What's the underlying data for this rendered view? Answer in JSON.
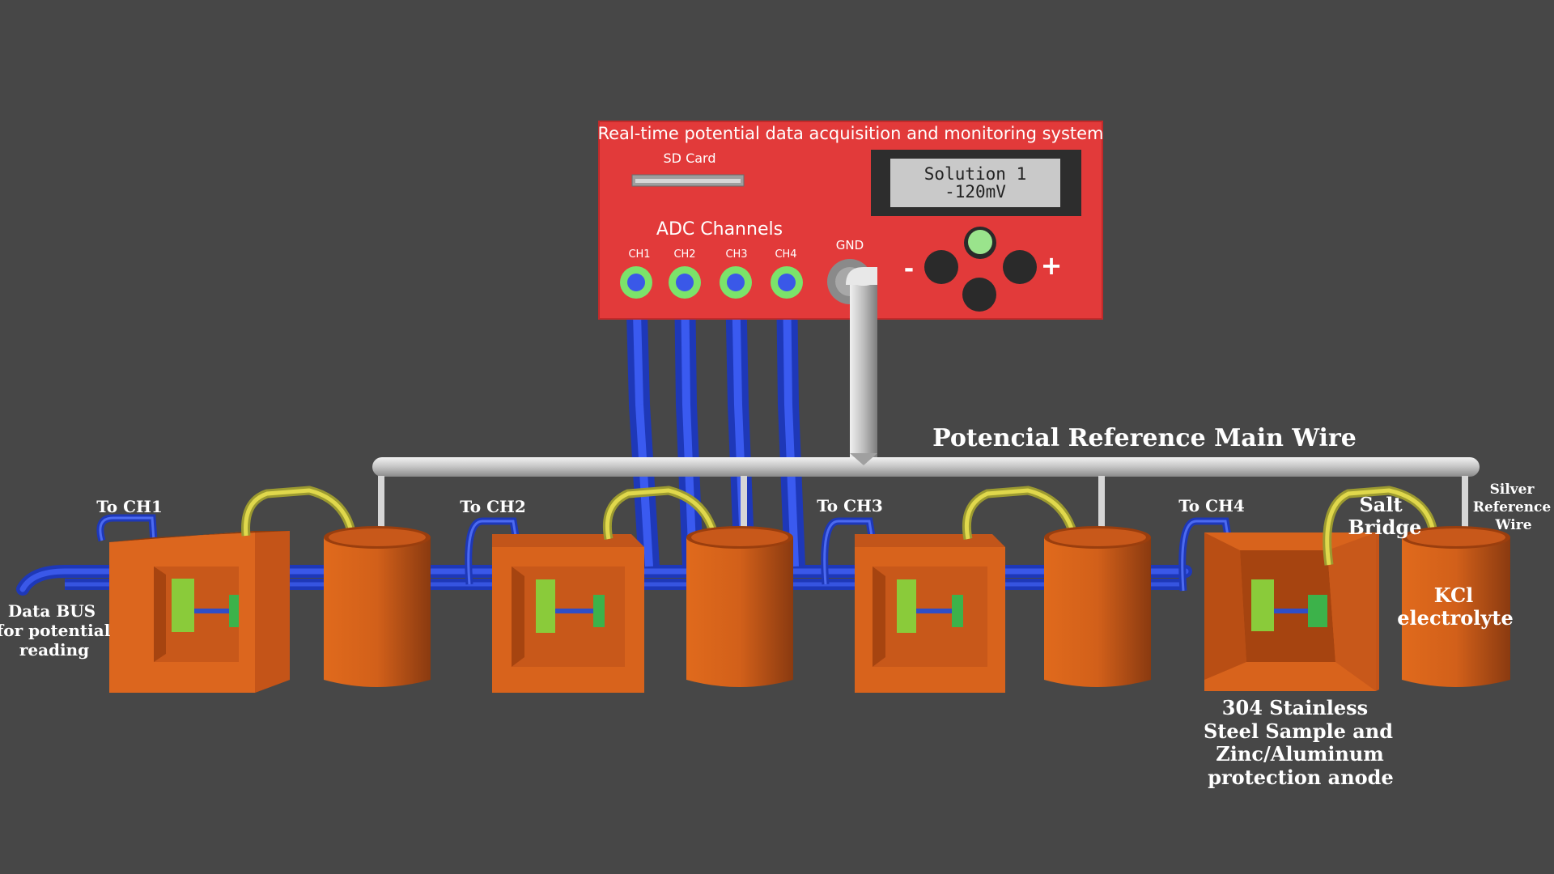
{
  "panel": {
    "title": "Real-time potential data acquisition and monitoring system",
    "sd_card_label": "SD Card",
    "adc_label": "ADC Channels",
    "channels": [
      "CH1",
      "CH2",
      "CH3",
      "CH4"
    ],
    "gnd_label": "GND",
    "display_line1": "Solution 1",
    "display_line2": "-120mV",
    "minus_label": "-",
    "plus_label": "+"
  },
  "labels": {
    "main_wire": "Potencial Reference Main Wire",
    "to_ch1": "To CH1",
    "to_ch2": "To CH2",
    "to_ch3": "To CH3",
    "to_ch4": "To CH4",
    "data_bus": [
      "Data BUS",
      "for potential",
      "reading"
    ],
    "salt_bridge": [
      "Salt",
      "Bridge"
    ],
    "silver_wire": [
      "Silver",
      "Reference",
      "Wire"
    ],
    "kcl": [
      "KCl",
      "electrolyte"
    ],
    "sample": [
      "304 Stainless",
      "Steel Sample and",
      "Zinc/Aluminum",
      "protection anode"
    ]
  },
  "colors": {
    "background": "#474747",
    "panel": "#e23a3a",
    "cell_orange": "#d8631c",
    "cable_blue": "#2d48d8",
    "salt_bridge_yellow": "#d8d048",
    "reference_wire": "#c8c8c8",
    "port_green": "#7be36a",
    "sample_green": "#8acb3a"
  }
}
